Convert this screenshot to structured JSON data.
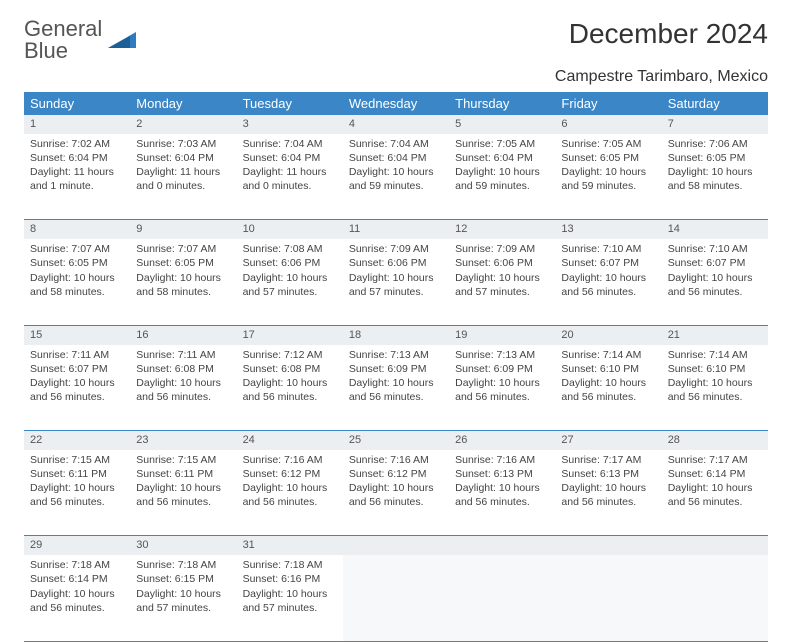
{
  "brand": {
    "line1": "General",
    "line2": "Blue"
  },
  "title": "December 2024",
  "location": "Campestre Tarimbaro, Mexico",
  "colors": {
    "header_bg": "#3b86c6",
    "header_fg": "#ffffff",
    "daynum_bg": "#eceff1",
    "rule": "#3b86c6",
    "brand_blue": "#2f7bbf"
  },
  "day_headers": [
    "Sunday",
    "Monday",
    "Tuesday",
    "Wednesday",
    "Thursday",
    "Friday",
    "Saturday"
  ],
  "weeks": [
    [
      {
        "n": "1",
        "sr": "Sunrise: 7:02 AM",
        "ss": "Sunset: 6:04 PM",
        "dl": "Daylight: 11 hours and 1 minute."
      },
      {
        "n": "2",
        "sr": "Sunrise: 7:03 AM",
        "ss": "Sunset: 6:04 PM",
        "dl": "Daylight: 11 hours and 0 minutes."
      },
      {
        "n": "3",
        "sr": "Sunrise: 7:04 AM",
        "ss": "Sunset: 6:04 PM",
        "dl": "Daylight: 11 hours and 0 minutes."
      },
      {
        "n": "4",
        "sr": "Sunrise: 7:04 AM",
        "ss": "Sunset: 6:04 PM",
        "dl": "Daylight: 10 hours and 59 minutes."
      },
      {
        "n": "5",
        "sr": "Sunrise: 7:05 AM",
        "ss": "Sunset: 6:04 PM",
        "dl": "Daylight: 10 hours and 59 minutes."
      },
      {
        "n": "6",
        "sr": "Sunrise: 7:05 AM",
        "ss": "Sunset: 6:05 PM",
        "dl": "Daylight: 10 hours and 59 minutes."
      },
      {
        "n": "7",
        "sr": "Sunrise: 7:06 AM",
        "ss": "Sunset: 6:05 PM",
        "dl": "Daylight: 10 hours and 58 minutes."
      }
    ],
    [
      {
        "n": "8",
        "sr": "Sunrise: 7:07 AM",
        "ss": "Sunset: 6:05 PM",
        "dl": "Daylight: 10 hours and 58 minutes."
      },
      {
        "n": "9",
        "sr": "Sunrise: 7:07 AM",
        "ss": "Sunset: 6:05 PM",
        "dl": "Daylight: 10 hours and 58 minutes."
      },
      {
        "n": "10",
        "sr": "Sunrise: 7:08 AM",
        "ss": "Sunset: 6:06 PM",
        "dl": "Daylight: 10 hours and 57 minutes."
      },
      {
        "n": "11",
        "sr": "Sunrise: 7:09 AM",
        "ss": "Sunset: 6:06 PM",
        "dl": "Daylight: 10 hours and 57 minutes."
      },
      {
        "n": "12",
        "sr": "Sunrise: 7:09 AM",
        "ss": "Sunset: 6:06 PM",
        "dl": "Daylight: 10 hours and 57 minutes."
      },
      {
        "n": "13",
        "sr": "Sunrise: 7:10 AM",
        "ss": "Sunset: 6:07 PM",
        "dl": "Daylight: 10 hours and 56 minutes."
      },
      {
        "n": "14",
        "sr": "Sunrise: 7:10 AM",
        "ss": "Sunset: 6:07 PM",
        "dl": "Daylight: 10 hours and 56 minutes."
      }
    ],
    [
      {
        "n": "15",
        "sr": "Sunrise: 7:11 AM",
        "ss": "Sunset: 6:07 PM",
        "dl": "Daylight: 10 hours and 56 minutes."
      },
      {
        "n": "16",
        "sr": "Sunrise: 7:11 AM",
        "ss": "Sunset: 6:08 PM",
        "dl": "Daylight: 10 hours and 56 minutes."
      },
      {
        "n": "17",
        "sr": "Sunrise: 7:12 AM",
        "ss": "Sunset: 6:08 PM",
        "dl": "Daylight: 10 hours and 56 minutes."
      },
      {
        "n": "18",
        "sr": "Sunrise: 7:13 AM",
        "ss": "Sunset: 6:09 PM",
        "dl": "Daylight: 10 hours and 56 minutes."
      },
      {
        "n": "19",
        "sr": "Sunrise: 7:13 AM",
        "ss": "Sunset: 6:09 PM",
        "dl": "Daylight: 10 hours and 56 minutes."
      },
      {
        "n": "20",
        "sr": "Sunrise: 7:14 AM",
        "ss": "Sunset: 6:10 PM",
        "dl": "Daylight: 10 hours and 56 minutes."
      },
      {
        "n": "21",
        "sr": "Sunrise: 7:14 AM",
        "ss": "Sunset: 6:10 PM",
        "dl": "Daylight: 10 hours and 56 minutes."
      }
    ],
    [
      {
        "n": "22",
        "sr": "Sunrise: 7:15 AM",
        "ss": "Sunset: 6:11 PM",
        "dl": "Daylight: 10 hours and 56 minutes."
      },
      {
        "n": "23",
        "sr": "Sunrise: 7:15 AM",
        "ss": "Sunset: 6:11 PM",
        "dl": "Daylight: 10 hours and 56 minutes."
      },
      {
        "n": "24",
        "sr": "Sunrise: 7:16 AM",
        "ss": "Sunset: 6:12 PM",
        "dl": "Daylight: 10 hours and 56 minutes."
      },
      {
        "n": "25",
        "sr": "Sunrise: 7:16 AM",
        "ss": "Sunset: 6:12 PM",
        "dl": "Daylight: 10 hours and 56 minutes."
      },
      {
        "n": "26",
        "sr": "Sunrise: 7:16 AM",
        "ss": "Sunset: 6:13 PM",
        "dl": "Daylight: 10 hours and 56 minutes."
      },
      {
        "n": "27",
        "sr": "Sunrise: 7:17 AM",
        "ss": "Sunset: 6:13 PM",
        "dl": "Daylight: 10 hours and 56 minutes."
      },
      {
        "n": "28",
        "sr": "Sunrise: 7:17 AM",
        "ss": "Sunset: 6:14 PM",
        "dl": "Daylight: 10 hours and 56 minutes."
      }
    ],
    [
      {
        "n": "29",
        "sr": "Sunrise: 7:18 AM",
        "ss": "Sunset: 6:14 PM",
        "dl": "Daylight: 10 hours and 56 minutes."
      },
      {
        "n": "30",
        "sr": "Sunrise: 7:18 AM",
        "ss": "Sunset: 6:15 PM",
        "dl": "Daylight: 10 hours and 57 minutes."
      },
      {
        "n": "31",
        "sr": "Sunrise: 7:18 AM",
        "ss": "Sunset: 6:16 PM",
        "dl": "Daylight: 10 hours and 57 minutes."
      },
      null,
      null,
      null,
      null
    ]
  ]
}
